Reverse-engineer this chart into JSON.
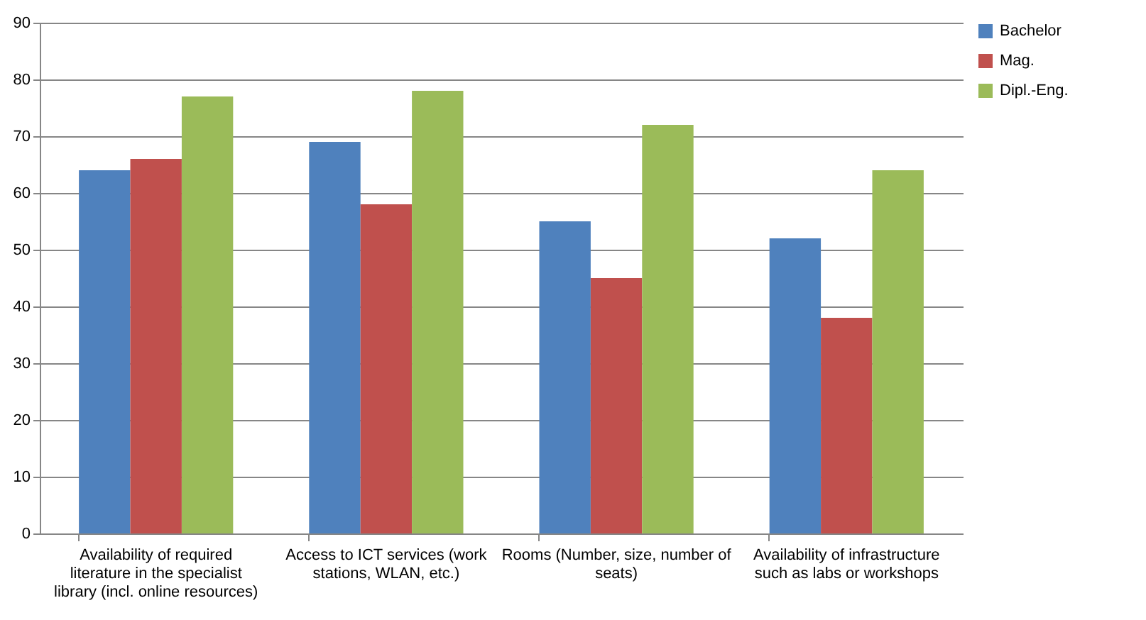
{
  "chart_data": {
    "type": "bar",
    "categories": [
      "Availability of required literature in the specialist library (incl. online resources)",
      "Access to ICT services (work stations, WLAN, etc.)",
      "Rooms (Number, size, number of seats)",
      "Availability of infrastructure such as labs or workshops"
    ],
    "series": [
      {
        "name": "Bachelor",
        "color": "#4f81bd",
        "values": [
          64,
          69,
          55,
          52
        ]
      },
      {
        "name": "Mag.",
        "color": "#c0504d",
        "values": [
          66,
          58,
          45,
          38
        ]
      },
      {
        "name": "Dipl.-Eng.",
        "color": "#9bbb59",
        "values": [
          77,
          78,
          72,
          64
        ]
      }
    ],
    "ylim": [
      0,
      90
    ],
    "yticks": [
      0,
      10,
      20,
      30,
      40,
      50,
      60,
      70,
      80,
      90
    ],
    "grid": "y",
    "legend": "right"
  }
}
